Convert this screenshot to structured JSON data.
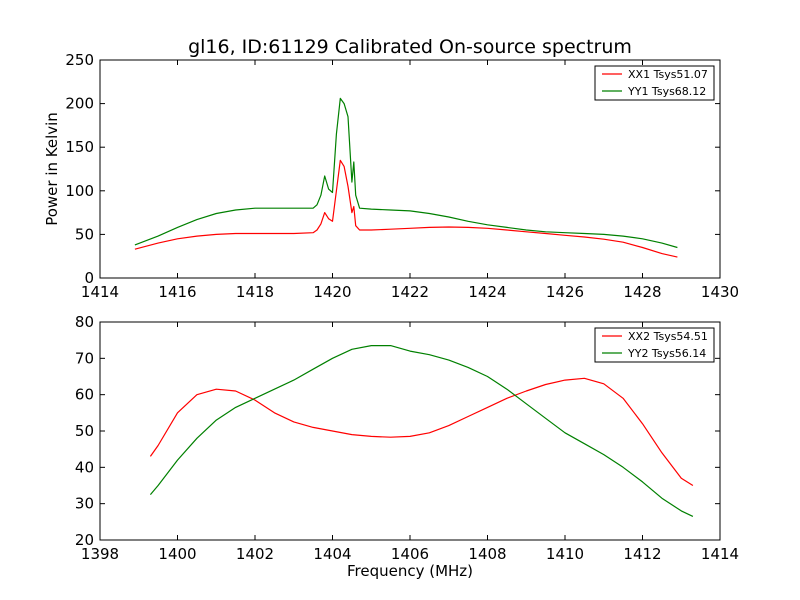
{
  "chart_data": [
    {
      "type": "line",
      "title": "gl16, ID:61129 Calibrated On-source spectrum",
      "xlabel": "",
      "ylabel": "Power in Kelvin",
      "xlim": [
        1414,
        1430
      ],
      "ylim": [
        0,
        250
      ],
      "xticks": [
        "1414",
        "1416",
        "1418",
        "1420",
        "1422",
        "1424",
        "1426",
        "1428",
        "1430"
      ],
      "yticks": [
        "0",
        "50",
        "100",
        "150",
        "200",
        "250"
      ],
      "legend_position": "top-right",
      "series": [
        {
          "name": "XX1 Tsys51.07",
          "color": "#ff0000",
          "x": [
            1414.9,
            1415.5,
            1416.0,
            1416.5,
            1417.0,
            1417.5,
            1418.0,
            1418.5,
            1419.0,
            1419.5,
            1419.6,
            1419.7,
            1419.8,
            1419.9,
            1420.0,
            1420.1,
            1420.2,
            1420.3,
            1420.4,
            1420.5,
            1420.55,
            1420.6,
            1420.7,
            1421.0,
            1421.5,
            1422.0,
            1422.5,
            1423.0,
            1423.5,
            1424.0,
            1424.5,
            1425.0,
            1425.5,
            1426.0,
            1426.5,
            1427.0,
            1427.5,
            1428.0,
            1428.5,
            1428.9
          ],
          "values": [
            33,
            40,
            45,
            48,
            50,
            51,
            51,
            51,
            51,
            52,
            55,
            62,
            75,
            68,
            65,
            100,
            135,
            128,
            105,
            75,
            82,
            60,
            55,
            55,
            56,
            57,
            58,
            58.5,
            58,
            57,
            55,
            53,
            51,
            49,
            47,
            44.5,
            41,
            35,
            28,
            24
          ]
        },
        {
          "name": "YY1 Tsys68.12",
          "color": "#008000",
          "x": [
            1414.9,
            1415.5,
            1416.0,
            1416.5,
            1417.0,
            1417.5,
            1418.0,
            1418.5,
            1419.0,
            1419.5,
            1419.6,
            1419.7,
            1419.8,
            1419.9,
            1420.0,
            1420.1,
            1420.2,
            1420.3,
            1420.4,
            1420.5,
            1420.55,
            1420.6,
            1420.7,
            1421.0,
            1421.5,
            1422.0,
            1422.5,
            1423.0,
            1423.5,
            1424.0,
            1424.5,
            1425.0,
            1425.5,
            1426.0,
            1426.5,
            1427.0,
            1427.5,
            1428.0,
            1428.5,
            1428.9
          ],
          "values": [
            38,
            48,
            58,
            67,
            74,
            78,
            80,
            80,
            80,
            80,
            84,
            95,
            117,
            102,
            98,
            165,
            206,
            200,
            185,
            110,
            133,
            95,
            80,
            79,
            78,
            77,
            74,
            70,
            65,
            61,
            58,
            55,
            53,
            52,
            51,
            50,
            48,
            45,
            40,
            35
          ]
        }
      ]
    },
    {
      "type": "line",
      "title": "",
      "xlabel": "Frequency (MHz)",
      "ylabel": "",
      "xlim": [
        1398,
        1414
      ],
      "ylim": [
        20,
        80
      ],
      "xticks": [
        "1398",
        "1400",
        "1402",
        "1404",
        "1406",
        "1408",
        "1410",
        "1412",
        "1414"
      ],
      "yticks": [
        "20",
        "30",
        "40",
        "50",
        "60",
        "70",
        "80"
      ],
      "legend_position": "top-right",
      "series": [
        {
          "name": "XX2 Tsys54.51",
          "color": "#ff0000",
          "x": [
            1399.3,
            1399.5,
            1400.0,
            1400.5,
            1401.0,
            1401.5,
            1402.0,
            1402.5,
            1403.0,
            1403.5,
            1404.0,
            1404.5,
            1405.0,
            1405.5,
            1406.0,
            1406.5,
            1407.0,
            1407.5,
            1408.0,
            1408.5,
            1409.0,
            1409.5,
            1410.0,
            1410.5,
            1411.0,
            1411.5,
            1412.0,
            1412.5,
            1413.0,
            1413.3
          ],
          "values": [
            43,
            46,
            55,
            60,
            61.5,
            61,
            58.5,
            55,
            52.5,
            51,
            50,
            49,
            48.5,
            48.3,
            48.5,
            49.5,
            51.5,
            54,
            56.5,
            59,
            61,
            62.8,
            64,
            64.5,
            63,
            59,
            52,
            44,
            37,
            35
          ]
        },
        {
          "name": "YY2 Tsys56.14",
          "color": "#008000",
          "x": [
            1399.3,
            1399.5,
            1400.0,
            1400.5,
            1401.0,
            1401.5,
            1402.0,
            1402.5,
            1403.0,
            1403.5,
            1404.0,
            1404.5,
            1405.0,
            1405.5,
            1406.0,
            1406.5,
            1407.0,
            1407.5,
            1408.0,
            1408.5,
            1409.0,
            1409.5,
            1410.0,
            1410.5,
            1411.0,
            1411.5,
            1412.0,
            1412.5,
            1413.0,
            1413.3
          ],
          "values": [
            32.5,
            35,
            42,
            48,
            53,
            56.5,
            59,
            61.5,
            64,
            67,
            70,
            72.5,
            73.5,
            73.5,
            72,
            71,
            69.5,
            67.5,
            65,
            61.5,
            57.5,
            53.5,
            49.5,
            46.5,
            43.5,
            40,
            36,
            31.5,
            28,
            26.5
          ]
        }
      ]
    }
  ]
}
